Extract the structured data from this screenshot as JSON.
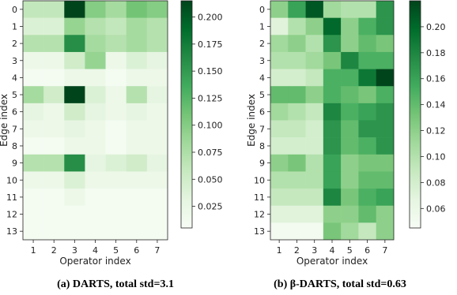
{
  "chart_data": [
    {
      "type": "heatmap",
      "caption": "(a) DARTS, total std=3.1",
      "xlabel": "Operator index",
      "ylabel": "Edge index",
      "x_ticks": [
        "1",
        "2",
        "3",
        "4",
        "5",
        "6",
        "7"
      ],
      "y_ticks": [
        "0",
        "1",
        "2",
        "3",
        "4",
        "5",
        "6",
        "7",
        "8",
        "9",
        "10",
        "11",
        "12",
        "13"
      ],
      "colormap": "Greens",
      "color_range": [
        0.005,
        0.215
      ],
      "colorbar_ticks": [
        "0.025",
        "0.050",
        "0.075",
        "0.100",
        "0.125",
        "0.150",
        "0.175",
        "0.200"
      ],
      "values": [
        [
          0.06,
          0.06,
          0.215,
          0.1,
          0.08,
          0.11,
          0.1
        ],
        [
          0.04,
          0.04,
          0.09,
          0.07,
          0.06,
          0.08,
          0.07
        ],
        [
          0.07,
          0.07,
          0.16,
          0.08,
          0.07,
          0.08,
          0.07
        ],
        [
          0.02,
          0.02,
          0.05,
          0.09,
          0.02,
          0.04,
          0.03
        ],
        [
          0.01,
          0.01,
          0.02,
          0.02,
          0.01,
          0.02,
          0.02
        ],
        [
          0.08,
          0.05,
          0.215,
          0.04,
          0.02,
          0.07,
          0.03
        ],
        [
          0.03,
          0.02,
          0.05,
          0.03,
          0.02,
          0.03,
          0.02
        ],
        [
          0.02,
          0.02,
          0.03,
          0.02,
          0.01,
          0.02,
          0.02
        ],
        [
          0.01,
          0.01,
          0.02,
          0.02,
          0.01,
          0.02,
          0.02
        ],
        [
          0.07,
          0.07,
          0.16,
          0.03,
          0.04,
          0.05,
          0.03
        ],
        [
          0.02,
          0.02,
          0.04,
          0.02,
          0.02,
          0.02,
          0.02
        ],
        [
          0.01,
          0.01,
          0.02,
          0.01,
          0.01,
          0.01,
          0.01
        ],
        [
          0.01,
          0.01,
          0.01,
          0.01,
          0.01,
          0.01,
          0.01
        ],
        [
          0.01,
          0.01,
          0.01,
          0.01,
          0.01,
          0.01,
          0.01
        ]
      ]
    },
    {
      "type": "heatmap",
      "caption": "(b) β-DARTS, total std=0.63",
      "xlabel": "Operator index",
      "ylabel": "Edge index",
      "x_ticks": [
        "1",
        "2",
        "3",
        "4",
        "5",
        "6",
        "7"
      ],
      "y_ticks": [
        "0",
        "1",
        "2",
        "3",
        "4",
        "5",
        "6",
        "7",
        "8",
        "9",
        "10",
        "11",
        "12",
        "13"
      ],
      "colormap": "Greens",
      "color_range": [
        0.045,
        0.22
      ],
      "colorbar_ticks": [
        "0.06",
        "0.08",
        "0.10",
        "0.12",
        "0.14",
        "0.16",
        "0.18",
        "0.20"
      ],
      "values": [
        [
          0.12,
          0.16,
          0.21,
          0.11,
          0.1,
          0.1,
          0.17
        ],
        [
          0.07,
          0.1,
          0.12,
          0.2,
          0.12,
          0.15,
          0.17
        ],
        [
          0.11,
          0.12,
          0.1,
          0.17,
          0.12,
          0.14,
          0.13
        ],
        [
          0.1,
          0.1,
          0.11,
          0.13,
          0.18,
          0.15,
          0.15
        ],
        [
          0.08,
          0.08,
          0.09,
          0.15,
          0.15,
          0.19,
          0.22
        ],
        [
          0.14,
          0.14,
          0.12,
          0.15,
          0.14,
          0.13,
          0.15
        ],
        [
          0.11,
          0.1,
          0.09,
          0.18,
          0.15,
          0.16,
          0.17
        ],
        [
          0.09,
          0.09,
          0.08,
          0.17,
          0.14,
          0.17,
          0.17
        ],
        [
          0.08,
          0.08,
          0.08,
          0.17,
          0.14,
          0.15,
          0.17
        ],
        [
          0.12,
          0.13,
          0.1,
          0.16,
          0.12,
          0.13,
          0.13
        ],
        [
          0.1,
          0.1,
          0.1,
          0.16,
          0.12,
          0.14,
          0.14
        ],
        [
          0.09,
          0.09,
          0.09,
          0.18,
          0.13,
          0.15,
          0.16
        ],
        [
          0.07,
          0.07,
          0.07,
          0.12,
          0.12,
          0.14,
          0.12
        ],
        [
          0.05,
          0.05,
          0.05,
          0.13,
          0.11,
          0.09,
          0.12
        ]
      ]
    }
  ]
}
